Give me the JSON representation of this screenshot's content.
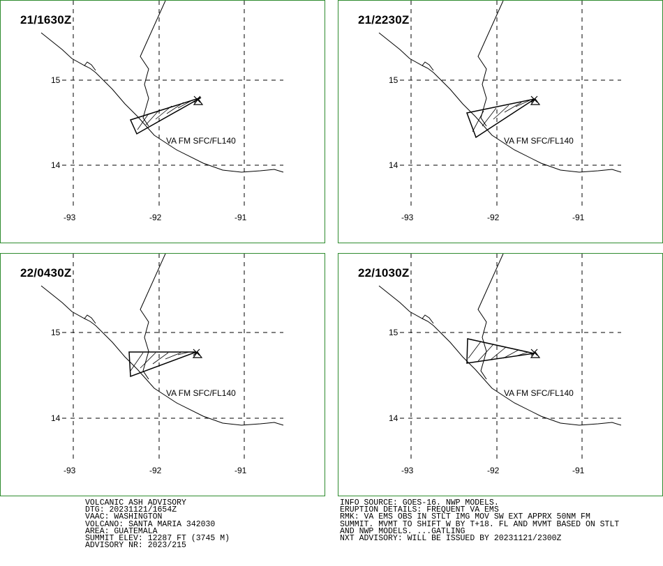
{
  "panels": [
    {
      "title": "21/1630Z",
      "label": "VA FM SFC/FL140",
      "lat_labels": [
        "15",
        "14"
      ],
      "lon_labels": [
        "-93",
        "-92",
        "-91"
      ]
    },
    {
      "title": "21/2230Z",
      "label": "VA FM SFC/FL140",
      "lat_labels": [
        "15",
        "14"
      ],
      "lon_labels": [
        "-93",
        "-92",
        "-91"
      ]
    },
    {
      "title": "22/0430Z",
      "label": "VA FM SFC/FL140",
      "lat_labels": [
        "15",
        "14"
      ],
      "lon_labels": [
        "-93",
        "-92",
        "-91"
      ]
    },
    {
      "title": "22/1030Z",
      "label": "VA FM SFC/FL140",
      "lat_labels": [
        "15",
        "14"
      ],
      "lon_labels": [
        "-93",
        "-92",
        "-91"
      ]
    }
  ],
  "advisory_left": [
    "VOLCANIC ASH ADVISORY",
    "DTG: 20231121/1654Z",
    "VAAC: WASHINGTON",
    "VOLCANO: SANTA MARIA 342030",
    "AREA: GUATEMALA",
    "SUMMIT ELEV: 12287 FT (3745 M)",
    "ADVISORY NR: 2023/215"
  ],
  "advisory_right": [
    "INFO SOURCE: GOES-16. NWP MODELS.",
    "ERUPTION DETAILS: FREQUENT VA EMS",
    "RMK: VA EMS OBS IN STLT IMG MOV SW EXT APPRX 50NM FM",
    "SUMMIT. MVMT TO SHIFT W BY T+18. FL AND MVMT BASED ON STLT",
    "AND NWP MODELS. ...GATLING",
    "NXT ADVISORY: WILL BE ISSUED BY 20231121/2300Z"
  ],
  "colors": {
    "border": "#2e8b2e",
    "lines": "#000000"
  },
  "icons": {
    "volcano": "x-mark-triangle-icon"
  }
}
